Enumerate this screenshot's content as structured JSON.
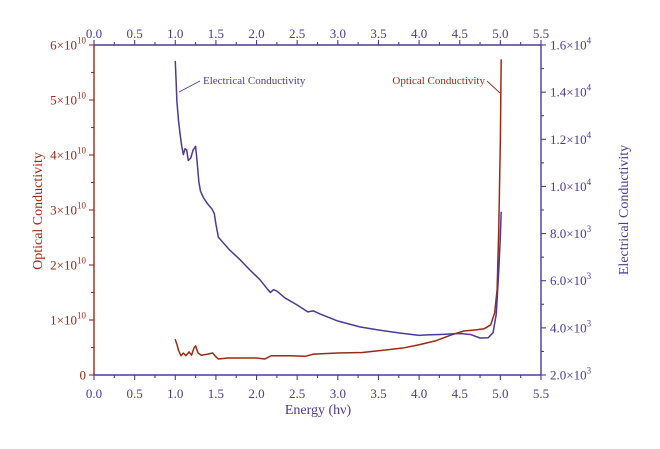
{
  "chart_data": {
    "type": "line",
    "grid": false,
    "x_axis": {
      "label": "Energy (hν)",
      "range": [
        0.0,
        5.5
      ],
      "ticks": [
        "0.0",
        "0.5",
        "1.0",
        "1.5",
        "2.0",
        "2.5",
        "3.0",
        "3.5",
        "4.0",
        "4.5",
        "5.0",
        "5.5"
      ]
    },
    "x_axis_top": {
      "ticks": [
        "0.0",
        "0.5",
        "1.0",
        "1.5",
        "2.0",
        "2.5",
        "3.0",
        "3.5",
        "4.0",
        "4.5",
        "5.0",
        "5.5"
      ]
    },
    "y_left": {
      "label": "Optical Conductivity",
      "range": [
        0,
        60000000000.0
      ],
      "ticks": [
        {
          "value": 0,
          "text": "0",
          "sup": ""
        },
        {
          "value": 10000000000.0,
          "text": "1×10",
          "sup": "10"
        },
        {
          "value": 20000000000.0,
          "text": "2×10",
          "sup": "10"
        },
        {
          "value": 30000000000.0,
          "text": "3×10",
          "sup": "10"
        },
        {
          "value": 40000000000.0,
          "text": "4×10",
          "sup": "10"
        },
        {
          "value": 50000000000.0,
          "text": "5×10",
          "sup": "10"
        },
        {
          "value": 60000000000.0,
          "text": "6×10",
          "sup": "10"
        }
      ]
    },
    "y_right": {
      "label": "Electrical Conductivity",
      "range": [
        2000,
        16000
      ],
      "ticks": [
        {
          "value": 2000,
          "text": "2.0×10",
          "sup": "3"
        },
        {
          "value": 4000,
          "text": "4.0×10",
          "sup": "3"
        },
        {
          "value": 6000,
          "text": "6.0×10",
          "sup": "3"
        },
        {
          "value": 8000,
          "text": "8.0×10",
          "sup": "3"
        },
        {
          "value": 10000,
          "text": "1.0×10",
          "sup": "4"
        },
        {
          "value": 12000,
          "text": "1.2×10",
          "sup": "4"
        },
        {
          "value": 14000,
          "text": "1.4×10",
          "sup": "4"
        },
        {
          "value": 16000,
          "text": "1.6×10",
          "sup": "4"
        }
      ]
    },
    "series": [
      {
        "name": "Optical Conductivity",
        "axis": "left",
        "color": "#9b2a14",
        "x": [
          1.0,
          1.02,
          1.04,
          1.07,
          1.1,
          1.13,
          1.17,
          1.2,
          1.23,
          1.25,
          1.28,
          1.32,
          1.4,
          1.46,
          1.5,
          1.53,
          1.65,
          1.8,
          2.0,
          2.1,
          2.18,
          2.4,
          2.6,
          2.7,
          3.0,
          3.3,
          3.5,
          3.8,
          4.0,
          4.2,
          4.4,
          4.55,
          4.7,
          4.8,
          4.88,
          4.93,
          4.96,
          4.98,
          5.0,
          5.01
        ],
        "y": [
          6400000000.0,
          5600000000.0,
          4500000000.0,
          3500000000.0,
          4000000000.0,
          3500000000.0,
          4200000000.0,
          3600000000.0,
          4900000000.0,
          5300000000.0,
          4000000000.0,
          3600000000.0,
          3800000000.0,
          4000000000.0,
          3300000000.0,
          2900000000.0,
          3100000000.0,
          3100000000.0,
          3100000000.0,
          2900000000.0,
          3500000000.0,
          3500000000.0,
          3400000000.0,
          3800000000.0,
          4000000000.0,
          4100000000.0,
          4400000000.0,
          4900000000.0,
          5500000000.0,
          6200000000.0,
          7300000000.0,
          8000000000.0,
          8200000000.0,
          8400000000.0,
          9100000000.0,
          11300000000.0,
          15500000000.0,
          26400000000.0,
          42700000000.0,
          57300000000.0
        ]
      },
      {
        "name": "Electrical Conductivity",
        "axis": "right",
        "color": "#4c3a94",
        "x": [
          1.0,
          1.01,
          1.02,
          1.04,
          1.06,
          1.08,
          1.1,
          1.12,
          1.14,
          1.16,
          1.19,
          1.22,
          1.25,
          1.27,
          1.29,
          1.31,
          1.35,
          1.4,
          1.45,
          1.48,
          1.5,
          1.53,
          1.58,
          1.67,
          1.8,
          1.92,
          2.04,
          2.14,
          2.17,
          2.21,
          2.25,
          2.35,
          2.5,
          2.63,
          2.7,
          2.78,
          3.0,
          3.27,
          3.5,
          3.76,
          4.0,
          4.1,
          4.26,
          4.5,
          4.63,
          4.75,
          4.85,
          4.91,
          4.95,
          4.98,
          5.0,
          5.01
        ],
        "y": [
          15300,
          14500,
          13600,
          12800,
          12200,
          11700,
          11350,
          11600,
          11550,
          11100,
          11200,
          11550,
          11700,
          11000,
          10200,
          9800,
          9500,
          9250,
          9050,
          8850,
          8400,
          7850,
          7650,
          7300,
          6880,
          6450,
          6050,
          5620,
          5500,
          5620,
          5560,
          5270,
          4970,
          4680,
          4720,
          4590,
          4290,
          4040,
          3910,
          3780,
          3680,
          3700,
          3720,
          3760,
          3720,
          3570,
          3580,
          3800,
          4600,
          6400,
          7900,
          8900
        ]
      }
    ]
  }
}
